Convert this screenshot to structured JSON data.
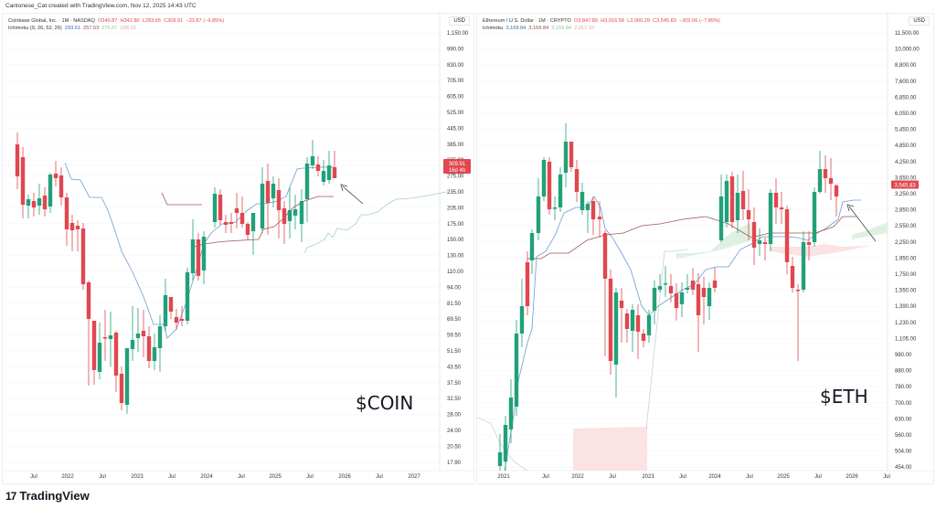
{
  "header": {
    "attribution": "Cantonese_Cat created with TradingView.com, Nov 12, 2025 14:43 UTC"
  },
  "footer": {
    "logo_mark": "17",
    "logo_text": "TradingView"
  },
  "colors": {
    "up": "#22a07a",
    "down": "#e0474f",
    "tenkan": "#6c9bd2",
    "kijun": "#a55454",
    "span_a": "#a8d5b0",
    "span_b": "#e0a5a5",
    "cloud_up": "#dff0e2",
    "cloud_down": "#fbe3e3",
    "price_line": "#f0b9bc",
    "grid": "#f2f3f5"
  },
  "charts": {
    "coin": {
      "legend": {
        "symbol": "Coinbase Global, Inc. · 1M · NASDAQ",
        "o": "O340.87",
        "h": "H342.80",
        "l": "L283.65",
        "c": "C309.91",
        "chg": "−33.87 (−9.85%)",
        "ichimoku_label": "Ichimoku (9, 26, 52, 26)",
        "ich": [
          "293.61",
          "257.53",
          "275.57",
          "238.10"
        ]
      },
      "currency": "USD",
      "ticker_label": "$COIN",
      "price_tag": {
        "value": "309.91",
        "countdown": "16d 4h"
      },
      "yaxis": [
        "1,150.00",
        "990.00",
        "830.00",
        "705.00",
        "605.00",
        "525.00",
        "445.00",
        "385.00",
        "325.00",
        "275.00",
        "235.00",
        "205.00",
        "175.00",
        "150.00",
        "130.00",
        "110.00",
        "94.00",
        "81.50",
        "69.50",
        "59.50",
        "51.50",
        "43.50",
        "37.50",
        "32.50",
        "28.00",
        "24.00",
        "20.50",
        "17.90"
      ],
      "xaxis": [
        [
          "Jul",
          36
        ],
        [
          "2022",
          73
        ],
        [
          "Jul",
          111
        ],
        [
          "2023",
          149
        ],
        [
          "Jul",
          187
        ],
        [
          "2024",
          225
        ],
        [
          "Jul",
          263
        ],
        [
          "2025",
          300
        ],
        [
          "Jul",
          338
        ],
        [
          "2026",
          376
        ],
        [
          "Jul",
          414
        ],
        [
          "2027",
          452
        ]
      ]
    },
    "eth": {
      "legend": {
        "symbol": "Ethereum / U.S. Dollar · 1M · CRYPTO",
        "o": "O3,847.89",
        "h": "H3,916.58",
        "l": "L3,060.29",
        "c": "C3,545.83",
        "chg": "−302.06 (−7.85%)",
        "ichimoku_label": "Ichimoku",
        "ich": [
          "3,169.84",
          "3,169.84",
          "3,169.84",
          "2,917.10"
        ]
      },
      "currency": "USD",
      "ticker_label": "$ETH",
      "price_tag": {
        "value": "3,545.83"
      },
      "yaxis": [
        "11,500.00",
        "10,000.00",
        "8,800.00",
        "7,600.00",
        "6,850.00",
        "6,050.00",
        "5,450.00",
        "4,850.00",
        "4,250.00",
        "3,650.00",
        "3,250.00",
        "2,850.00",
        "2,550.00",
        "2,250.00",
        "1,950.00",
        "1,750.00",
        "1,550.00",
        "1,390.00",
        "1,230.00",
        "1,105.00",
        "980.00",
        "880.00",
        "780.00",
        "700.00",
        "630.00",
        "560.00",
        "504.00",
        "454.00"
      ],
      "xaxis": [
        [
          "2021",
          550
        ],
        [
          "Jul",
          596
        ],
        [
          "2022",
          631
        ],
        [
          "Jul",
          669
        ],
        [
          "2023",
          708
        ],
        [
          "Jul",
          746
        ],
        [
          "2024",
          781
        ],
        [
          "Jul",
          819
        ],
        [
          "2025",
          856
        ],
        [
          "Jul",
          894
        ],
        [
          "2026",
          931
        ],
        [
          "Jul",
          969
        ]
      ]
    }
  },
  "chart_data": [
    {
      "type": "candlestick",
      "title": "Coinbase Global, Inc. · 1M · NASDAQ",
      "annotation": "$COIN",
      "yscale": "log",
      "ylim": [
        17.9,
        1150
      ],
      "last_close": 309.91,
      "ichimoku": {
        "tenkan": 293.61,
        "kijun": 257.53,
        "span_a": 275.57,
        "span_b": 238.1
      },
      "candles_xy": [
        [
          17,
          150,
          180,
          140,
          210
        ],
        [
          23,
          180,
          240,
          174,
          245
        ],
        [
          30,
          204,
          214,
          200,
          220
        ],
        [
          35,
          214,
          205,
          200,
          230
        ],
        [
          41,
          206,
          214,
          197,
          222
        ],
        [
          47,
          216,
          199,
          195,
          230
        ],
        [
          53,
          200,
          217,
          196,
          228
        ],
        [
          59,
          175,
          145,
          143,
          185
        ],
        [
          65,
          174,
          178,
          168,
          183
        ],
        [
          71,
          178,
          232,
          185,
          236
        ],
        [
          77,
          233,
          241,
          215,
          254
        ],
        [
          83,
          241,
          296,
          226,
          303
        ],
        [
          89,
          296,
          332,
          262,
          340
        ],
        [
          95,
          332,
          380,
          270,
          400
        ],
        [
          101,
          380,
          425,
          365,
          440
        ],
        [
          107,
          425,
          365,
          350,
          440
        ],
        [
          113,
          365,
          360,
          355,
          370
        ],
        [
          119,
          359,
          354,
          345,
          370
        ],
        [
          125,
          356,
          400,
          352,
          420
        ],
        [
          131,
          400,
          442,
          394,
          450
        ],
        [
          137,
          442,
          420,
          420,
          456
        ],
        [
          143,
          420,
          372,
          360,
          440
        ],
        [
          149,
          372,
          364,
          358,
          375
        ],
        [
          155,
          364,
          360,
          355,
          370
        ],
        [
          161,
          361,
          340,
          328,
          380
        ],
        [
          167,
          340,
          348,
          336,
          360
        ],
        [
          173,
          348,
          320,
          312,
          355
        ],
        [
          179,
          320,
          312,
          306,
          327
        ],
        [
          185,
          311,
          302,
          300,
          330
        ],
        [
          191,
          297,
          293,
          290,
          310
        ],
        [
          197,
          298,
          288,
          280,
          315
        ],
        [
          203,
          288,
          290,
          286,
          300
        ],
        [
          209,
          290,
          275,
          270,
          295
        ],
        [
          215,
          275,
          225,
          220,
          300
        ],
        [
          221,
          225,
          210,
          207,
          240
        ],
        [
          227,
          210,
          212,
          205,
          230
        ],
        [
          233,
          212,
          190,
          185,
          225
        ],
        [
          239,
          190,
          215,
          185,
          220
        ],
        [
          245,
          192,
          218,
          190,
          232
        ],
        [
          251,
          219,
          210,
          205,
          225
        ],
        [
          257,
          210,
          225,
          200,
          230
        ],
        [
          263,
          225,
          195,
          190,
          235
        ],
        [
          269,
          195,
          213,
          188,
          225
        ],
        [
          275,
          213,
          188,
          184,
          230
        ],
        [
          281,
          188,
          205,
          210,
          235
        ],
        [
          287,
          205,
          224,
          190,
          235
        ],
        [
          293,
          224,
          240,
          205,
          245
        ],
        [
          299,
          240,
          212,
          199,
          250
        ],
        [
          305,
          212,
          194,
          185,
          222
        ],
        [
          311,
          198,
          232,
          192,
          238
        ],
        [
          317,
          232,
          230,
          222,
          250
        ],
        [
          323,
          230,
          203,
          200,
          236
        ],
        [
          329,
          205,
          200,
          195,
          210
        ],
        [
          335,
          205,
          170,
          160,
          215
        ],
        [
          341,
          170,
          166,
          150,
          180
        ],
        [
          347,
          167,
          175,
          163,
          185
        ],
        [
          353,
          175,
          185,
          170,
          190
        ],
        [
          359,
          174,
          185,
          170,
          200
        ],
        [
          365,
          168,
          180,
          168,
          190
        ]
      ]
    },
    {
      "type": "candlestick",
      "title": "Ethereum / U.S. Dollar · 1M · CRYPTO",
      "annotation": "$ETH",
      "yscale": "log",
      "ylim": [
        454,
        11500
      ],
      "last_close": 3545.83,
      "ichimoku": {
        "tenkan": 3169.84,
        "kijun": 3169.84,
        "span_a": 3169.84,
        "span_b": 2917.1
      }
    }
  ]
}
